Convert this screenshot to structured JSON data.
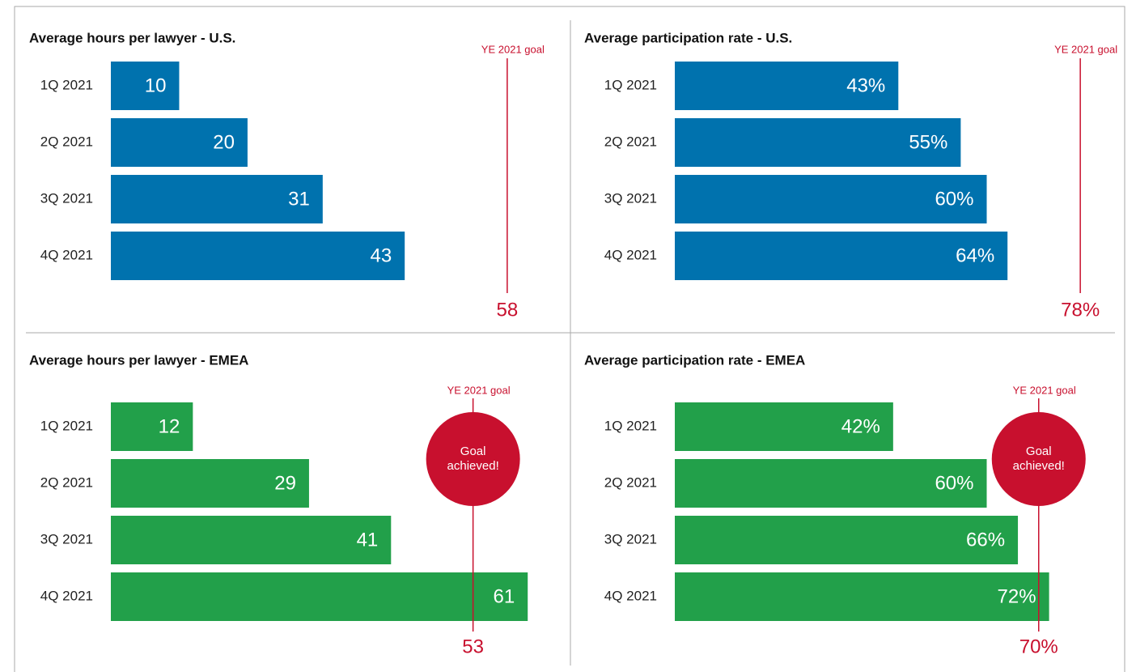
{
  "chart_data": [
    {
      "type": "bar",
      "orientation": "horizontal",
      "title": "Average hours per lawyer - U.S.",
      "categories": [
        "1Q 2021",
        "2Q 2021",
        "3Q 2021",
        "4Q 2021"
      ],
      "values": [
        10,
        20,
        31,
        43
      ],
      "color": "#0072ae",
      "xlim": [
        0,
        65
      ],
      "goal": 58,
      "goal_caption": "YE 2021 goal",
      "goal_color": "#c8102e"
    },
    {
      "type": "bar",
      "orientation": "horizontal",
      "title": "Average participation rate - U.S.",
      "categories": [
        "1Q 2021",
        "2Q 2021",
        "3Q 2021",
        "4Q 2021"
      ],
      "values": [
        43,
        55,
        60,
        64
      ],
      "value_labels": [
        "43%",
        "55%",
        "60%",
        "64%"
      ],
      "color": "#0072ae",
      "xlim": [
        0,
        80
      ],
      "goal": 78,
      "goal_value_label": "78%",
      "goal_caption": "YE 2021 goal",
      "goal_color": "#c8102e"
    },
    {
      "type": "bar",
      "orientation": "horizontal",
      "title": "Average hours per lawyer - EMEA",
      "categories": [
        "1Q 2021",
        "2Q 2021",
        "3Q 2021",
        "4Q 2021"
      ],
      "values": [
        12,
        29,
        41,
        61
      ],
      "color": "#22a04a",
      "xlim": [
        0,
        65
      ],
      "goal": 53,
      "goal_caption": "YE 2021 goal",
      "goal_color": "#c8102e",
      "goal_badge": "Goal achieved!"
    },
    {
      "type": "bar",
      "orientation": "horizontal",
      "title": "Average participation rate - EMEA",
      "categories": [
        "1Q 2021",
        "2Q 2021",
        "3Q 2021",
        "4Q 2021"
      ],
      "values": [
        42,
        60,
        66,
        72
      ],
      "value_labels": [
        "42%",
        "60%",
        "66%",
        "72%"
      ],
      "color": "#22a04a",
      "xlim": [
        0,
        80
      ],
      "goal": 70,
      "goal_value_label": "70%",
      "goal_caption": "YE 2021 goal",
      "goal_color": "#c8102e",
      "goal_badge": "Goal achieved!"
    }
  ]
}
